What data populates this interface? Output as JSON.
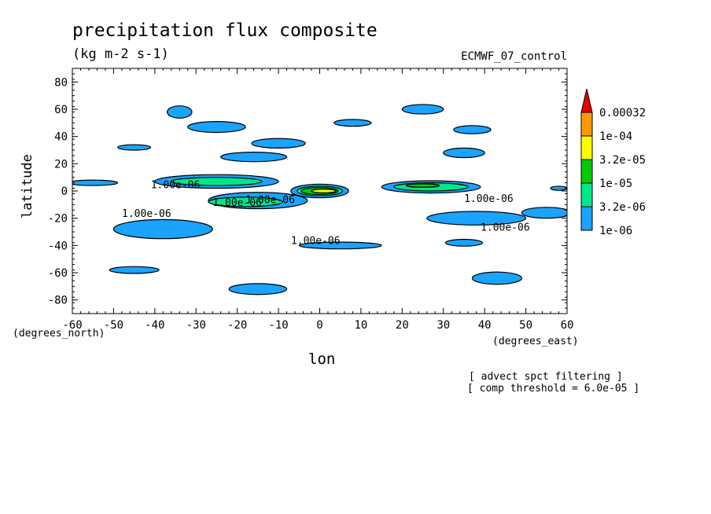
{
  "chart_data": {
    "type": "contour",
    "title": "precipitation flux composite",
    "units": "(kg m-2 s-1)",
    "model": "ECMWF_07_control",
    "xlabel": "lon",
    "ylabel": "latitude",
    "x_unit_label": "(degrees_east)",
    "y_unit_label": "(degrees_north)",
    "xlim": [
      -60,
      60
    ],
    "ylim": [
      -90,
      90
    ],
    "x_ticks": [
      -60,
      -50,
      -40,
      -30,
      -20,
      -10,
      0,
      10,
      20,
      30,
      40,
      50,
      60
    ],
    "y_ticks": [
      -80,
      -60,
      -40,
      -20,
      0,
      20,
      40,
      60,
      80
    ],
    "levels": [
      "1e-06",
      "3.2e-06",
      "1e-05",
      "3.2e-05",
      "1e-04",
      "0.00032"
    ],
    "level_colors": [
      "#1aa3ff",
      "#00e68a",
      "#00cc00",
      "#ffff00",
      "#ff9900",
      "#e60000"
    ],
    "contour_labels": [
      {
        "text": "1.00e-06",
        "lon": -35,
        "lat": 2
      },
      {
        "text": "1.00e-06",
        "lon": -20,
        "lat": -11
      },
      {
        "text": "1.00e-06",
        "lon": -12,
        "lat": -9
      },
      {
        "text": "1.00e-06",
        "lon": -42,
        "lat": -19
      },
      {
        "text": "1.00e-06",
        "lon": -1,
        "lat": -39
      },
      {
        "text": "1.00e-06",
        "lon": 41,
        "lat": -8
      },
      {
        "text": "1.00e-06",
        "lon": 45,
        "lat": -29
      }
    ],
    "regions": [
      {
        "level": 0,
        "lon": -25,
        "lat": 7,
        "w": 30,
        "h": 10
      },
      {
        "level": 1,
        "lon": -25,
        "lat": 7,
        "w": 22,
        "h": 6
      },
      {
        "level": 0,
        "lon": -15,
        "lat": -7,
        "w": 24,
        "h": 12
      },
      {
        "level": 1,
        "lon": -18,
        "lat": -8,
        "w": 18,
        "h": 7
      },
      {
        "level": 0,
        "lon": 0,
        "lat": 0,
        "w": 14,
        "h": 10
      },
      {
        "level": 1,
        "lon": 0,
        "lat": 0,
        "w": 11,
        "h": 7
      },
      {
        "level": 2,
        "lon": 0,
        "lat": 0,
        "w": 9,
        "h": 5
      },
      {
        "level": 3,
        "lon": 1,
        "lat": 0,
        "w": 6,
        "h": 2.5
      },
      {
        "level": 0,
        "lon": 27,
        "lat": 3,
        "w": 24,
        "h": 9
      },
      {
        "level": 1,
        "lon": 27,
        "lat": 3,
        "w": 18,
        "h": 6
      },
      {
        "level": 2,
        "lon": 25,
        "lat": 4,
        "w": 8,
        "h": 2.5
      },
      {
        "level": 0,
        "lon": -34,
        "lat": 58,
        "w": 6,
        "h": 9
      },
      {
        "level": 0,
        "lon": -25,
        "lat": 47,
        "w": 14,
        "h": 8
      },
      {
        "level": 0,
        "lon": -16,
        "lat": 25,
        "w": 16,
        "h": 7
      },
      {
        "level": 0,
        "lon": -10,
        "lat": 35,
        "w": 13,
        "h": 7
      },
      {
        "level": 0,
        "lon": 8,
        "lat": 50,
        "w": 9,
        "h": 5
      },
      {
        "level": 0,
        "lon": 25,
        "lat": 60,
        "w": 10,
        "h": 7
      },
      {
        "level": 0,
        "lon": 35,
        "lat": 28,
        "w": 10,
        "h": 7
      },
      {
        "level": 0,
        "lon": 37,
        "lat": 45,
        "w": 9,
        "h": 6
      },
      {
        "level": 0,
        "lon": -45,
        "lat": 32,
        "w": 8,
        "h": 4
      },
      {
        "level": 0,
        "lon": -55,
        "lat": 6,
        "w": 12,
        "h": 4
      },
      {
        "level": 0,
        "lon": -38,
        "lat": -28,
        "w": 24,
        "h": 14
      },
      {
        "level": 0,
        "lon": 38,
        "lat": -20,
        "w": 24,
        "h": 10
      },
      {
        "level": 0,
        "lon": 55,
        "lat": -16,
        "w": 12,
        "h": 8
      },
      {
        "level": 0,
        "lon": 5,
        "lat": -40,
        "w": 20,
        "h": 5
      },
      {
        "level": 0,
        "lon": -45,
        "lat": -58,
        "w": 12,
        "h": 5
      },
      {
        "level": 0,
        "lon": -15,
        "lat": -72,
        "w": 14,
        "h": 8
      },
      {
        "level": 0,
        "lon": 43,
        "lat": -64,
        "w": 12,
        "h": 9
      },
      {
        "level": 0,
        "lon": 35,
        "lat": -38,
        "w": 9,
        "h": 5
      },
      {
        "level": 0,
        "lon": 58,
        "lat": 2,
        "w": 4,
        "h": 3
      }
    ]
  },
  "annotations": {
    "line1": "[ advect spct filtering ]",
    "line2": "[ comp threshold = 6.0e-05 ]"
  }
}
